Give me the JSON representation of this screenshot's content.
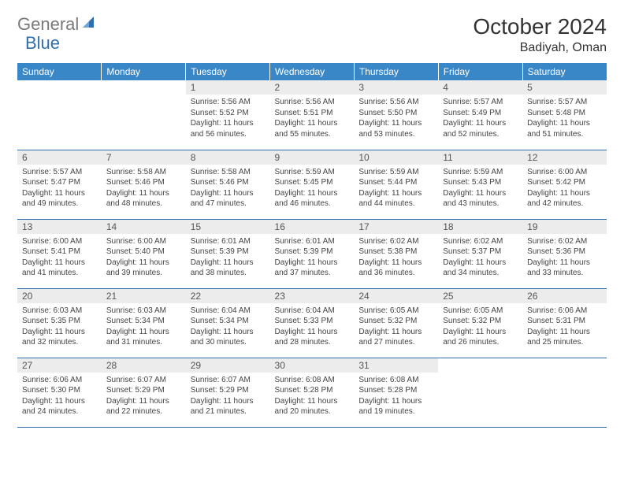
{
  "brand": {
    "part1": "General",
    "part2": "Blue"
  },
  "title": "October 2024",
  "location": "Badiyah, Oman",
  "colors": {
    "header_bg": "#3a87c8",
    "header_text": "#ffffff",
    "daynum_bg": "#ececec",
    "border": "#2f6fb0",
    "brand_gray": "#7a7a7a",
    "brand_blue": "#2f6fb0"
  },
  "weekdays": [
    "Sunday",
    "Monday",
    "Tuesday",
    "Wednesday",
    "Thursday",
    "Friday",
    "Saturday"
  ],
  "weeks": [
    [
      null,
      null,
      {
        "n": "1",
        "sr": "Sunrise: 5:56 AM",
        "ss": "Sunset: 5:52 PM",
        "dl": "Daylight: 11 hours and 56 minutes."
      },
      {
        "n": "2",
        "sr": "Sunrise: 5:56 AM",
        "ss": "Sunset: 5:51 PM",
        "dl": "Daylight: 11 hours and 55 minutes."
      },
      {
        "n": "3",
        "sr": "Sunrise: 5:56 AM",
        "ss": "Sunset: 5:50 PM",
        "dl": "Daylight: 11 hours and 53 minutes."
      },
      {
        "n": "4",
        "sr": "Sunrise: 5:57 AM",
        "ss": "Sunset: 5:49 PM",
        "dl": "Daylight: 11 hours and 52 minutes."
      },
      {
        "n": "5",
        "sr": "Sunrise: 5:57 AM",
        "ss": "Sunset: 5:48 PM",
        "dl": "Daylight: 11 hours and 51 minutes."
      }
    ],
    [
      {
        "n": "6",
        "sr": "Sunrise: 5:57 AM",
        "ss": "Sunset: 5:47 PM",
        "dl": "Daylight: 11 hours and 49 minutes."
      },
      {
        "n": "7",
        "sr": "Sunrise: 5:58 AM",
        "ss": "Sunset: 5:46 PM",
        "dl": "Daylight: 11 hours and 48 minutes."
      },
      {
        "n": "8",
        "sr": "Sunrise: 5:58 AM",
        "ss": "Sunset: 5:46 PM",
        "dl": "Daylight: 11 hours and 47 minutes."
      },
      {
        "n": "9",
        "sr": "Sunrise: 5:59 AM",
        "ss": "Sunset: 5:45 PM",
        "dl": "Daylight: 11 hours and 46 minutes."
      },
      {
        "n": "10",
        "sr": "Sunrise: 5:59 AM",
        "ss": "Sunset: 5:44 PM",
        "dl": "Daylight: 11 hours and 44 minutes."
      },
      {
        "n": "11",
        "sr": "Sunrise: 5:59 AM",
        "ss": "Sunset: 5:43 PM",
        "dl": "Daylight: 11 hours and 43 minutes."
      },
      {
        "n": "12",
        "sr": "Sunrise: 6:00 AM",
        "ss": "Sunset: 5:42 PM",
        "dl": "Daylight: 11 hours and 42 minutes."
      }
    ],
    [
      {
        "n": "13",
        "sr": "Sunrise: 6:00 AM",
        "ss": "Sunset: 5:41 PM",
        "dl": "Daylight: 11 hours and 41 minutes."
      },
      {
        "n": "14",
        "sr": "Sunrise: 6:00 AM",
        "ss": "Sunset: 5:40 PM",
        "dl": "Daylight: 11 hours and 39 minutes."
      },
      {
        "n": "15",
        "sr": "Sunrise: 6:01 AM",
        "ss": "Sunset: 5:39 PM",
        "dl": "Daylight: 11 hours and 38 minutes."
      },
      {
        "n": "16",
        "sr": "Sunrise: 6:01 AM",
        "ss": "Sunset: 5:39 PM",
        "dl": "Daylight: 11 hours and 37 minutes."
      },
      {
        "n": "17",
        "sr": "Sunrise: 6:02 AM",
        "ss": "Sunset: 5:38 PM",
        "dl": "Daylight: 11 hours and 36 minutes."
      },
      {
        "n": "18",
        "sr": "Sunrise: 6:02 AM",
        "ss": "Sunset: 5:37 PM",
        "dl": "Daylight: 11 hours and 34 minutes."
      },
      {
        "n": "19",
        "sr": "Sunrise: 6:02 AM",
        "ss": "Sunset: 5:36 PM",
        "dl": "Daylight: 11 hours and 33 minutes."
      }
    ],
    [
      {
        "n": "20",
        "sr": "Sunrise: 6:03 AM",
        "ss": "Sunset: 5:35 PM",
        "dl": "Daylight: 11 hours and 32 minutes."
      },
      {
        "n": "21",
        "sr": "Sunrise: 6:03 AM",
        "ss": "Sunset: 5:34 PM",
        "dl": "Daylight: 11 hours and 31 minutes."
      },
      {
        "n": "22",
        "sr": "Sunrise: 6:04 AM",
        "ss": "Sunset: 5:34 PM",
        "dl": "Daylight: 11 hours and 30 minutes."
      },
      {
        "n": "23",
        "sr": "Sunrise: 6:04 AM",
        "ss": "Sunset: 5:33 PM",
        "dl": "Daylight: 11 hours and 28 minutes."
      },
      {
        "n": "24",
        "sr": "Sunrise: 6:05 AM",
        "ss": "Sunset: 5:32 PM",
        "dl": "Daylight: 11 hours and 27 minutes."
      },
      {
        "n": "25",
        "sr": "Sunrise: 6:05 AM",
        "ss": "Sunset: 5:32 PM",
        "dl": "Daylight: 11 hours and 26 minutes."
      },
      {
        "n": "26",
        "sr": "Sunrise: 6:06 AM",
        "ss": "Sunset: 5:31 PM",
        "dl": "Daylight: 11 hours and 25 minutes."
      }
    ],
    [
      {
        "n": "27",
        "sr": "Sunrise: 6:06 AM",
        "ss": "Sunset: 5:30 PM",
        "dl": "Daylight: 11 hours and 24 minutes."
      },
      {
        "n": "28",
        "sr": "Sunrise: 6:07 AM",
        "ss": "Sunset: 5:29 PM",
        "dl": "Daylight: 11 hours and 22 minutes."
      },
      {
        "n": "29",
        "sr": "Sunrise: 6:07 AM",
        "ss": "Sunset: 5:29 PM",
        "dl": "Daylight: 11 hours and 21 minutes."
      },
      {
        "n": "30",
        "sr": "Sunrise: 6:08 AM",
        "ss": "Sunset: 5:28 PM",
        "dl": "Daylight: 11 hours and 20 minutes."
      },
      {
        "n": "31",
        "sr": "Sunrise: 6:08 AM",
        "ss": "Sunset: 5:28 PM",
        "dl": "Daylight: 11 hours and 19 minutes."
      },
      null,
      null
    ]
  ]
}
